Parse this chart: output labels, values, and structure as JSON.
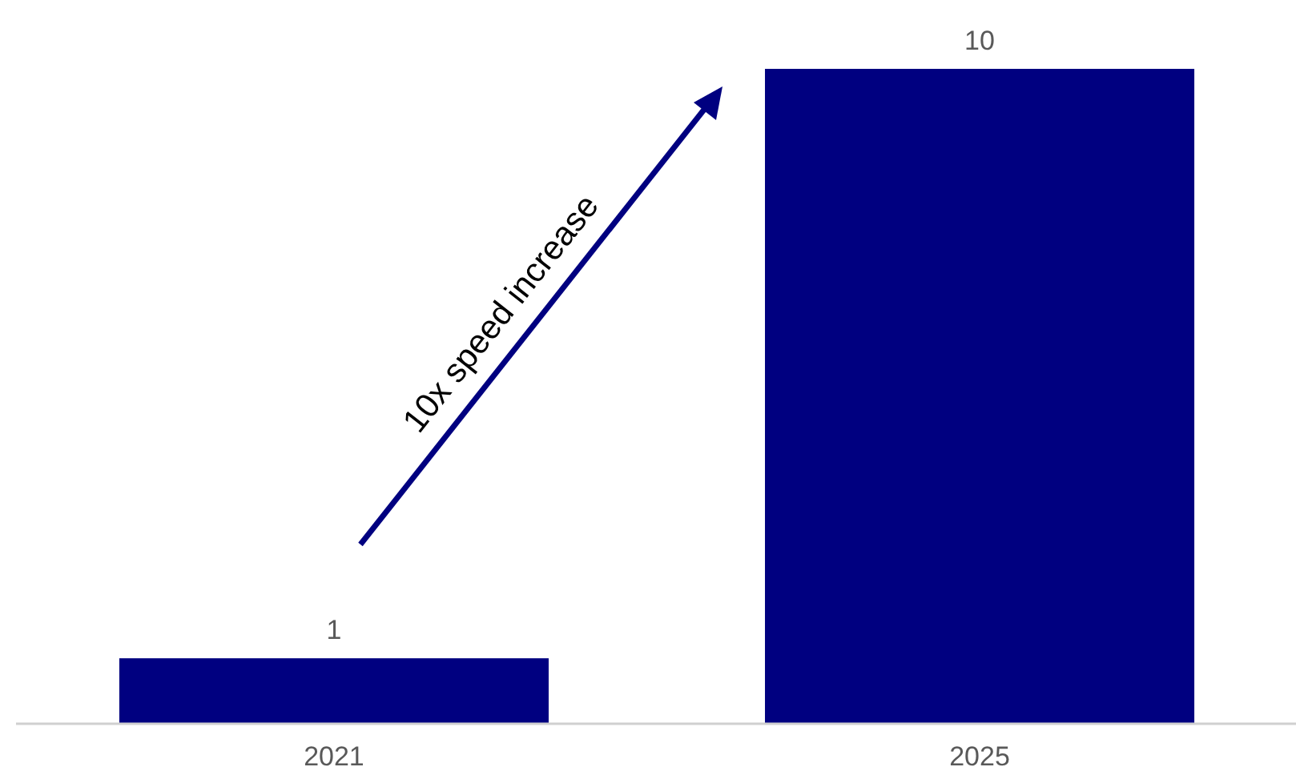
{
  "chart_data": {
    "type": "bar",
    "categories": [
      "2021",
      "2025"
    ],
    "values": [
      1,
      10
    ],
    "color": "#000080",
    "ylim": [
      0,
      10
    ],
    "tick_labels": "x",
    "data_labels": true,
    "annotations": [
      "10x speed increase"
    ]
  }
}
